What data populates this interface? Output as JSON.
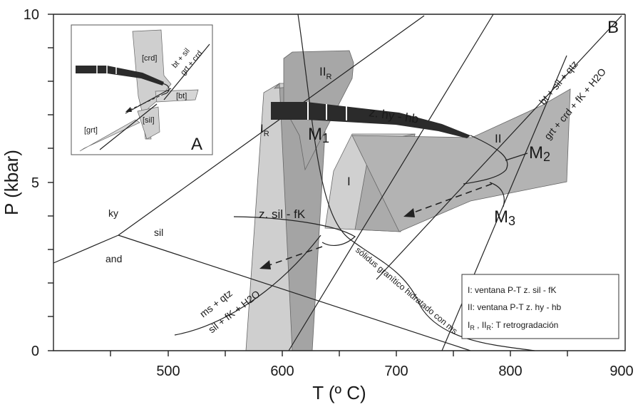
{
  "axes": {
    "x_label": "T (º C)",
    "y_label": "P (kbar)",
    "x_ticks": [
      "500",
      "600",
      "700",
      "800",
      "900"
    ],
    "y_ticks": [
      "0",
      "5",
      "10"
    ],
    "x_range_c": [
      400,
      900
    ],
    "y_range_kbar": [
      0,
      10
    ]
  },
  "panel_labels": {
    "main": "B",
    "inset": "A"
  },
  "fields": {
    "ky": "ky",
    "sil": "sil",
    "and": "and"
  },
  "reactions": {
    "ms_top": "ms + qtz",
    "ms_bot": "sil + fK + H2O",
    "bt_top": "bt + sil + qtz",
    "bt_bot": "grt + crd + fK + H2O",
    "solidus": "sólidus granítico hidratado con ms"
  },
  "windows": {
    "I": "I",
    "II": "II",
    "IR_main": "I",
    "IR_sub": "R",
    "IIR_main": "II",
    "IIR_sub": "R"
  },
  "zones": {
    "hy_hb": "z. hy - hb",
    "sil_fk": "z. sil - fK"
  },
  "metamorphic": {
    "M1": "M",
    "M1_sub": "1",
    "M2": "M",
    "M2_sub": "2",
    "M3": "M",
    "M3_sub": "3"
  },
  "legend": {
    "line1": "I: ventana P-T z. sil - fK",
    "line2": "II: ventana P-T z. hy - hb",
    "line3_prefix": "I",
    "line3_sub1": "R",
    "line3_mid": " ,  II",
    "line3_sub2": "R",
    "line3_suffix": ": T retrogradación"
  },
  "inset": {
    "crd": "[crd]",
    "bt": "[bt]",
    "sil": "[sil]",
    "grt": "[grt]",
    "reac_top": "bt + sil",
    "reac_bot": "grt + crd"
  },
  "colors": {
    "light_gray": "#d4d4d4",
    "mid_gray": "#a9a9a9",
    "dark_gray": "#8f8f8f",
    "band_dark": "#2b2b2b"
  }
}
